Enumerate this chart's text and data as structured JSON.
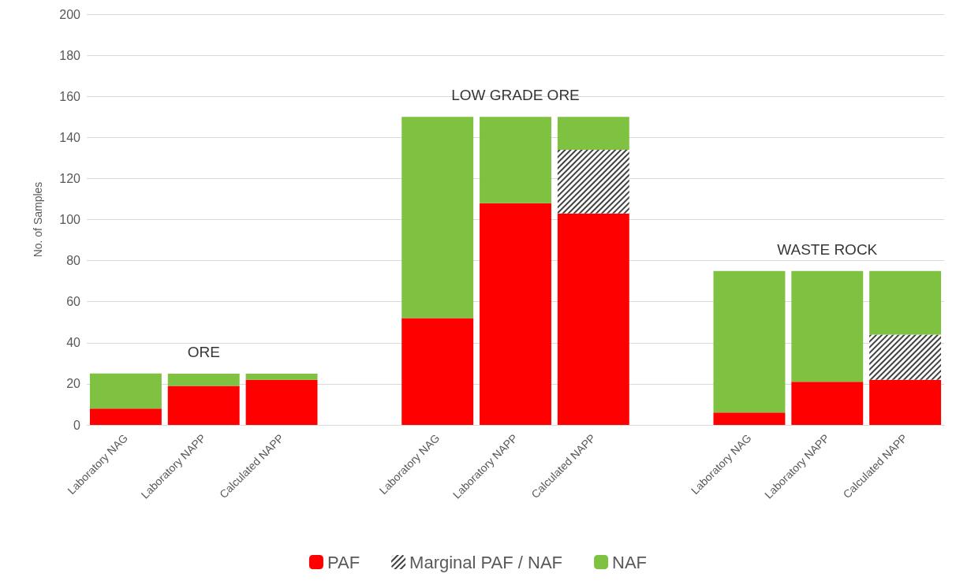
{
  "chart_data": {
    "type": "bar",
    "stacked": true,
    "ylabel": "No. of Samples",
    "categories": [
      "Laboratory NAG",
      "Laboratory NAPP",
      "Calculated NAPP",
      null,
      "Laboratory NAG",
      "Laboratory NAPP",
      "Calculated NAPP",
      null,
      "Laboratory NAG",
      "Laboratory NAPP",
      "Calculated NAPP"
    ],
    "series": [
      {
        "name": "PAF",
        "color": "#ff0000",
        "values": [
          8,
          19,
          22,
          null,
          52,
          108,
          103,
          null,
          6,
          21,
          22
        ]
      },
      {
        "name": "Marginal PAF / NAF",
        "color": "#404040",
        "values": [
          null,
          null,
          null,
          null,
          null,
          null,
          31,
          null,
          null,
          null,
          22
        ]
      },
      {
        "name": "NAF",
        "color": "#7fc241",
        "values": [
          17,
          6,
          3,
          null,
          98,
          42,
          16,
          null,
          69,
          54,
          31
        ]
      }
    ],
    "annotations": [
      "ORE",
      "LOW GRADE ORE",
      "WASTE ROCK"
    ],
    "ylim": [
      0,
      200
    ],
    "yticks": [
      0,
      20,
      40,
      60,
      80,
      100,
      120,
      140,
      160,
      180,
      200
    ],
    "grid": "y",
    "legend": "bottom"
  }
}
